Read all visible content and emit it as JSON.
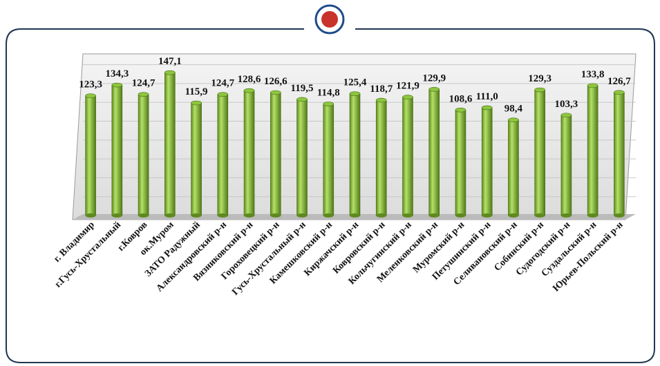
{
  "chart_data": {
    "type": "bar",
    "categories": [
      "г. Владимир",
      "г.Гусь-Хрустальный",
      "г.Ковров",
      "ок.Муром",
      "ЗАТО Радужный",
      "Александровский р-н",
      "Вязниковский р-н",
      "Гороховецкий р-н",
      "Гусь-Хрустальный р-н",
      "Камешковский р-н",
      "Киржачский р-н",
      "Ковровский р-н",
      "Кольчугинский р-н",
      "Меленковский р-н",
      "Муромский р-н",
      "Петушинский р-н",
      "Селивановский р-н",
      "Собинский р-н",
      "Судогодский р-н",
      "Суздальский р-н",
      "Юрьев-Польский р-н"
    ],
    "values": [
      123.3,
      134.3,
      124.7,
      147.1,
      115.9,
      124.7,
      128.6,
      126.6,
      119.5,
      114.8,
      125.4,
      118.7,
      121.9,
      129.9,
      108.6,
      111.0,
      98.4,
      129.3,
      103.3,
      133.8,
      126.7
    ],
    "value_labels": [
      "123,3",
      "134,3",
      "124,7",
      "147,1",
      "115,9",
      "124,7",
      "128,6",
      "126,6",
      "119,5",
      "114,8",
      "125,4",
      "118,7",
      "121,9",
      "129,9",
      "108,6",
      "111,0",
      "98,4",
      "129,3",
      "103,3",
      "133,8",
      "126,7"
    ],
    "color": "#8dc63f",
    "ylim": [
      0,
      165
    ],
    "grid": true
  }
}
